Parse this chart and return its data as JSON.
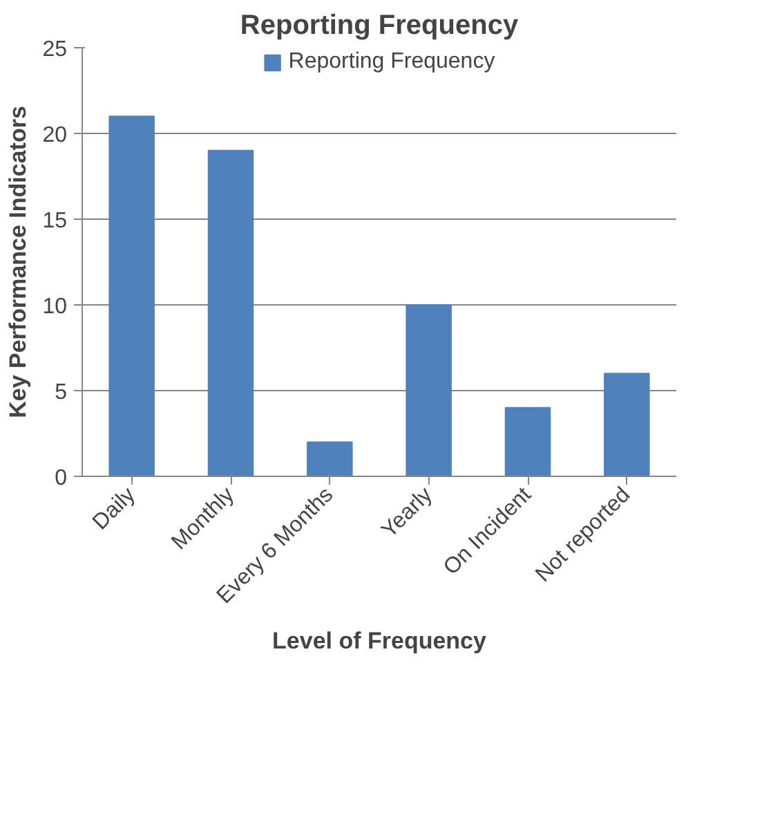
{
  "chart_data": {
    "type": "bar",
    "title": "Reporting Frequency",
    "xlabel": "Level of Frequency",
    "ylabel": "Key Performance Indicators",
    "categories": [
      "Daily",
      "Monthly",
      "Every 6 Months",
      "Yearly",
      "On Incident",
      "Not reported"
    ],
    "series": [
      {
        "name": "Reporting Frequency",
        "color": "#4f81bd",
        "values": [
          21,
          19,
          2,
          10,
          4,
          6
        ]
      }
    ],
    "ylim": [
      0,
      25
    ],
    "yticks": [
      0,
      5,
      10,
      15,
      20,
      25
    ],
    "grid": "y",
    "legend": "top"
  }
}
